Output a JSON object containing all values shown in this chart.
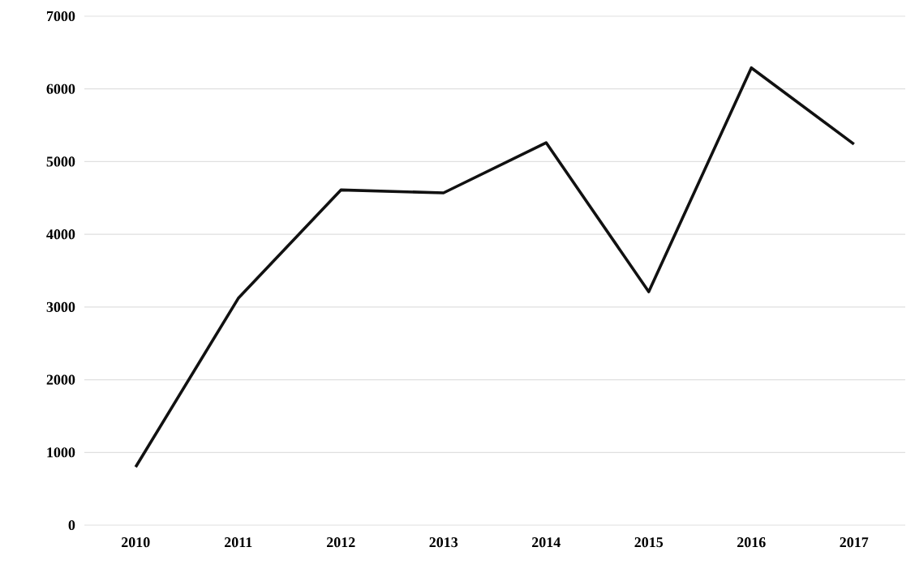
{
  "chart_data": {
    "type": "line",
    "categories": [
      "2010",
      "2011",
      "2012",
      "2013",
      "2014",
      "2015",
      "2016",
      "2017"
    ],
    "series": [
      {
        "color": "#111111",
        "values": [
          800,
          3120,
          4610,
          4570,
          5260,
          3210,
          6290,
          5240
        ]
      }
    ],
    "ylim": [
      0,
      7000
    ],
    "yticks": [
      0,
      1000,
      2000,
      3000,
      4000,
      5000,
      6000,
      7000
    ],
    "grid": "y",
    "marker": "none",
    "line_style": "solid"
  }
}
